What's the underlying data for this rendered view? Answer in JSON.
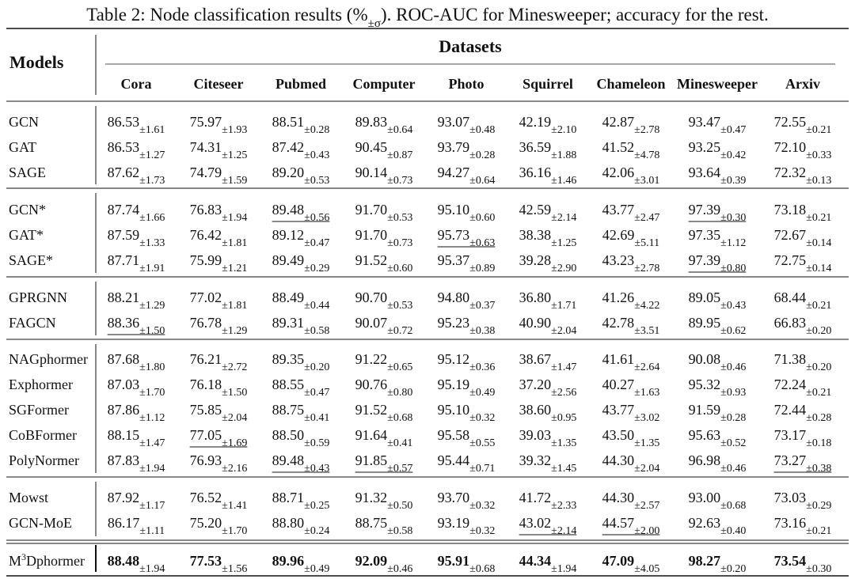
{
  "caption": {
    "before": "Table 2: Node classification results (%",
    "sub": "±σ",
    "after": "). ROC-AUC for Minesweeper; accuracy for the rest."
  },
  "table": {
    "header": {
      "models": "Models",
      "group_label": "Datasets",
      "columns": [
        "Cora",
        "Citeseer",
        "Pubmed",
        "Computer",
        "Photo",
        "Squirrel",
        "Chameleon",
        "Minesweeper",
        "Arxiv"
      ]
    },
    "groups": [
      {
        "rows": [
          {
            "model": "GCN",
            "cells": [
              [
                "86.53",
                "±1.61"
              ],
              [
                "75.97",
                "±1.93"
              ],
              [
                "88.51",
                "±0.28"
              ],
              [
                "89.83",
                "±0.64"
              ],
              [
                "93.07",
                "±0.48"
              ],
              [
                "42.19",
                "±2.10"
              ],
              [
                "42.87",
                "±2.78"
              ],
              [
                "93.47",
                "±0.47"
              ],
              [
                "72.55",
                "±0.21"
              ]
            ]
          },
          {
            "model": "GAT",
            "cells": [
              [
                "86.53",
                "±1.27"
              ],
              [
                "74.31",
                "±1.25"
              ],
              [
                "87.42",
                "±0.43"
              ],
              [
                "90.45",
                "±0.87"
              ],
              [
                "93.79",
                "±0.28"
              ],
              [
                "36.59",
                "±1.88"
              ],
              [
                "41.52",
                "±4.78"
              ],
              [
                "93.25",
                "±0.42"
              ],
              [
                "72.10",
                "±0.33"
              ]
            ]
          },
          {
            "model": "SAGE",
            "cells": [
              [
                "87.62",
                "±1.73"
              ],
              [
                "74.79",
                "±1.59"
              ],
              [
                "89.20",
                "±0.53"
              ],
              [
                "90.14",
                "±0.73"
              ],
              [
                "94.27",
                "±0.64"
              ],
              [
                "36.16",
                "±1.46"
              ],
              [
                "42.06",
                "±3.01"
              ],
              [
                "93.64",
                "±0.39"
              ],
              [
                "72.32",
                "±0.13"
              ]
            ]
          }
        ]
      },
      {
        "rows": [
          {
            "model": "GCN*",
            "underline": [
              2,
              7
            ],
            "cells": [
              [
                "87.74",
                "±1.66"
              ],
              [
                "76.83",
                "±1.94"
              ],
              [
                "89.48",
                "±0.56"
              ],
              [
                "91.70",
                "±0.53"
              ],
              [
                "95.10",
                "±0.60"
              ],
              [
                "42.59",
                "±2.14"
              ],
              [
                "43.77",
                "±2.47"
              ],
              [
                "97.39",
                "±0.30"
              ],
              [
                "73.18",
                "±0.21"
              ]
            ]
          },
          {
            "model": "GAT*",
            "underline": [
              4
            ],
            "cells": [
              [
                "87.59",
                "±1.33"
              ],
              [
                "76.42",
                "±1.81"
              ],
              [
                "89.12",
                "±0.47"
              ],
              [
                "91.70",
                "±0.73"
              ],
              [
                "95.73",
                "±0.63"
              ],
              [
                "38.38",
                "±1.25"
              ],
              [
                "42.69",
                "±5.11"
              ],
              [
                "97.35",
                "±1.12"
              ],
              [
                "72.67",
                "±0.14"
              ]
            ]
          },
          {
            "model": "SAGE*",
            "underline": [
              7
            ],
            "cells": [
              [
                "87.71",
                "±1.91"
              ],
              [
                "75.99",
                "±1.21"
              ],
              [
                "89.49",
                "±0.29"
              ],
              [
                "91.52",
                "±0.60"
              ],
              [
                "95.37",
                "±0.89"
              ],
              [
                "39.28",
                "±2.90"
              ],
              [
                "43.23",
                "±2.78"
              ],
              [
                "97.39",
                "±0.80"
              ],
              [
                "72.75",
                "±0.14"
              ]
            ]
          }
        ]
      },
      {
        "rows": [
          {
            "model": "GPRGNN",
            "cells": [
              [
                "88.21",
                "±1.29"
              ],
              [
                "77.02",
                "±1.81"
              ],
              [
                "88.49",
                "±0.44"
              ],
              [
                "90.70",
                "±0.53"
              ],
              [
                "94.80",
                "±0.37"
              ],
              [
                "36.80",
                "±1.71"
              ],
              [
                "41.26",
                "±4.22"
              ],
              [
                "89.05",
                "±0.43"
              ],
              [
                "68.44",
                "±0.21"
              ]
            ]
          },
          {
            "model": "FAGCN",
            "underline": [
              0
            ],
            "cells": [
              [
                "88.36",
                "±1.50"
              ],
              [
                "76.78",
                "±1.29"
              ],
              [
                "89.31",
                "±0.58"
              ],
              [
                "90.07",
                "±0.72"
              ],
              [
                "95.23",
                "±0.38"
              ],
              [
                "40.90",
                "±2.04"
              ],
              [
                "42.78",
                "±3.51"
              ],
              [
                "89.95",
                "±0.62"
              ],
              [
                "66.83",
                "±0.20"
              ]
            ]
          }
        ]
      },
      {
        "rows": [
          {
            "model": "NAGphormer",
            "cells": [
              [
                "87.68",
                "±1.80"
              ],
              [
                "76.21",
                "±2.72"
              ],
              [
                "89.35",
                "±0.20"
              ],
              [
                "91.22",
                "±0.65"
              ],
              [
                "95.12",
                "±0.36"
              ],
              [
                "38.67",
                "±1.47"
              ],
              [
                "41.61",
                "±2.64"
              ],
              [
                "90.08",
                "±0.46"
              ],
              [
                "71.38",
                "±0.20"
              ]
            ]
          },
          {
            "model": "Exphormer",
            "cells": [
              [
                "87.03",
                "±1.70"
              ],
              [
                "76.18",
                "±1.50"
              ],
              [
                "88.55",
                "±0.47"
              ],
              [
                "90.76",
                "±0.80"
              ],
              [
                "95.19",
                "±0.49"
              ],
              [
                "37.20",
                "±2.56"
              ],
              [
                "40.27",
                "±1.63"
              ],
              [
                "95.32",
                "±0.93"
              ],
              [
                "72.24",
                "±0.21"
              ]
            ]
          },
          {
            "model": "SGFormer",
            "cells": [
              [
                "87.86",
                "±1.12"
              ],
              [
                "75.85",
                "±2.04"
              ],
              [
                "88.75",
                "±0.41"
              ],
              [
                "91.52",
                "±0.68"
              ],
              [
                "95.10",
                "±0.32"
              ],
              [
                "38.60",
                "±0.95"
              ],
              [
                "43.77",
                "±3.02"
              ],
              [
                "91.59",
                "±0.28"
              ],
              [
                "72.44",
                "±0.28"
              ]
            ]
          },
          {
            "model": "CoBFormer",
            "underline": [
              1
            ],
            "cells": [
              [
                "88.15",
                "±1.47"
              ],
              [
                "77.05",
                "±1.69"
              ],
              [
                "88.50",
                "±0.59"
              ],
              [
                "91.64",
                "±0.41"
              ],
              [
                "95.58",
                "±0.55"
              ],
              [
                "39.03",
                "±1.35"
              ],
              [
                "43.50",
                "±1.35"
              ],
              [
                "95.63",
                "±0.52"
              ],
              [
                "73.17",
                "±0.18"
              ]
            ]
          },
          {
            "model": "PolyNormer",
            "underline": [
              2,
              3,
              8
            ],
            "cells": [
              [
                "87.83",
                "±1.94"
              ],
              [
                "76.93",
                "±2.16"
              ],
              [
                "89.48",
                "±0.43"
              ],
              [
                "91.85",
                "±0.57"
              ],
              [
                "95.44",
                "±0.71"
              ],
              [
                "39.32",
                "±1.45"
              ],
              [
                "44.30",
                "±2.04"
              ],
              [
                "96.98",
                "±0.46"
              ],
              [
                "73.27",
                "±0.38"
              ]
            ]
          }
        ]
      },
      {
        "rows": [
          {
            "model": "Mowst",
            "cells": [
              [
                "87.92",
                "±1.17"
              ],
              [
                "76.52",
                "±1.41"
              ],
              [
                "88.71",
                "±0.25"
              ],
              [
                "91.32",
                "±0.50"
              ],
              [
                "93.70",
                "±0.32"
              ],
              [
                "41.72",
                "±2.33"
              ],
              [
                "44.30",
                "±2.57"
              ],
              [
                "93.00",
                "±0.68"
              ],
              [
                "73.03",
                "±0.29"
              ]
            ]
          },
          {
            "model": "GCN-MoE",
            "underline": [
              5,
              6
            ],
            "cells": [
              [
                "86.17",
                "±1.11"
              ],
              [
                "75.20",
                "±1.70"
              ],
              [
                "88.80",
                "±0.24"
              ],
              [
                "88.75",
                "±0.58"
              ],
              [
                "93.19",
                "±0.32"
              ],
              [
                "43.02",
                "±2.14"
              ],
              [
                "44.57",
                "±2.00"
              ],
              [
                "92.63",
                "±0.40"
              ],
              [
                "73.16",
                "±0.21"
              ]
            ]
          }
        ]
      },
      {
        "rows": [
          {
            "model": "M",
            "model_sup": "3",
            "model_suffix": "Dphormer",
            "bold": true,
            "cells": [
              [
                "88.48",
                "±1.94"
              ],
              [
                "77.53",
                "±1.56"
              ],
              [
                "89.96",
                "±0.49"
              ],
              [
                "92.09",
                "±0.46"
              ],
              [
                "95.91",
                "±0.68"
              ],
              [
                "44.34",
                "±1.94"
              ],
              [
                "47.09",
                "±4.05"
              ],
              [
                "98.27",
                "±0.20"
              ],
              [
                "73.54",
                "±0.30"
              ]
            ]
          }
        ]
      }
    ]
  }
}
